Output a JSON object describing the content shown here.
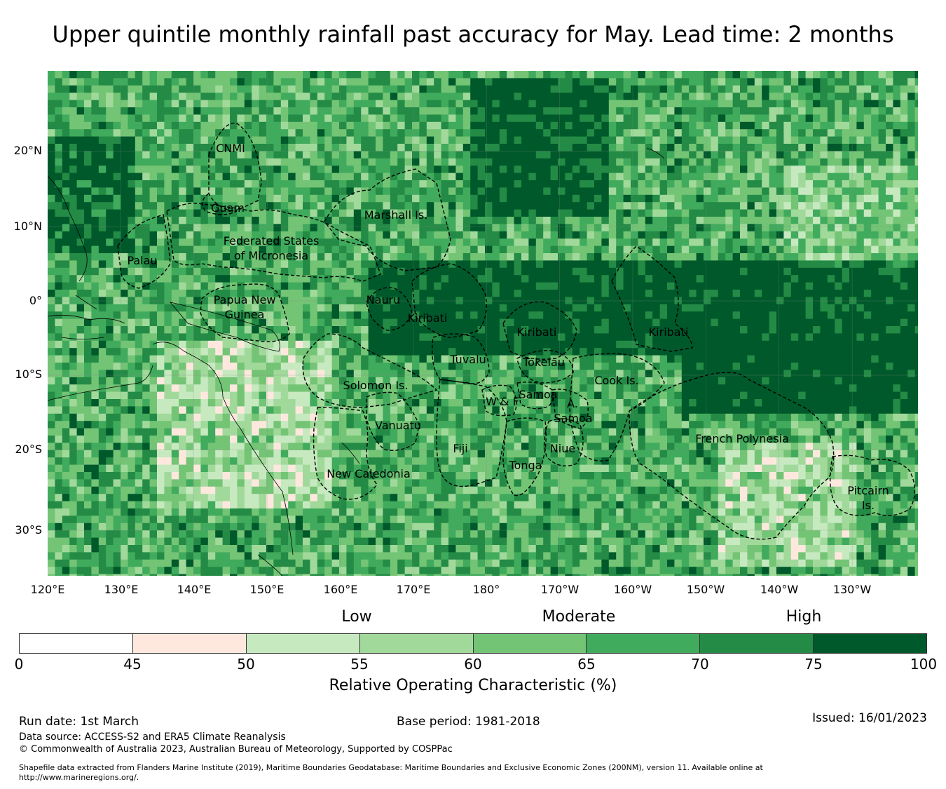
{
  "title": "Upper quintile monthly rainfall past accuracy for May. Lead time: 2 months",
  "map": {
    "lat_labels": [
      "20°N",
      "10°N",
      "0°",
      "10°S",
      "20°S",
      "30°S"
    ],
    "lon_labels": [
      "120°E",
      "130°E",
      "140°E",
      "150°E",
      "160°E",
      "170°E",
      "180°",
      "170°W",
      "160°W",
      "150°W",
      "140°W",
      "130°W"
    ],
    "regions": {
      "cnmi": "CNMI",
      "guam": "Guam",
      "marshall": "Marshall Is.",
      "fsm_line1": "Federated States",
      "fsm_line2": "of Micronesia",
      "palau": "Palau",
      "png_line1": "Papua New",
      "png_line2": "Guinea",
      "nauru": "Nauru",
      "kiribati_west": "Kiribati",
      "kiribati_central": "Kiribati",
      "kiribati_east": "Kiribati",
      "tuvalu": "Tuvalu",
      "tokelau": "Tokelau",
      "cook": "Cook Is.",
      "solomon": "Solomon Is.",
      "wallis": "W & F",
      "samoa": "Samoa",
      "am_samoa_line1": "A.",
      "am_samoa_line2": "Samoa",
      "vanuatu": "Vanuatu",
      "fiji": "Fiji",
      "niue": "Niue",
      "tonga": "Tonga",
      "new_caledonia": "New Caledonia",
      "french_polynesia": "French Polynesia",
      "pitcairn_line1": "Pitcairn",
      "pitcairn_line2": "Is."
    }
  },
  "colorbar": {
    "categories": [
      "Low",
      "Moderate",
      "High"
    ],
    "ticks": [
      "0",
      "45",
      "50",
      "55",
      "60",
      "65",
      "70",
      "75",
      "100"
    ],
    "colors": [
      "#ffffff",
      "#fee8de",
      "#c7e9c0",
      "#a1d99b",
      "#74c476",
      "#41ab5d",
      "#238b45",
      "#00592b"
    ],
    "title": "Relative Operating Characteristic (%)"
  },
  "footer": {
    "run_date": "Run date: 1st March",
    "base_period": "Base period: 1981-2018",
    "issued": "Issued: 16/01/2023",
    "data_source": "Data source: ACCESS-S2 and ERA5 Climate Reanalysis",
    "copyright": "© Commonwealth of Australia 2023, Australian Bureau of Meteorology, Supported by COSPPac",
    "shapefile_line1": "Shapefile data extracted from Flanders Marine Institute (2019), Maritime Boundaries Geodatabase: Maritime Boundaries and Exclusive Economic Zones (200NM), version 11. Available online at",
    "shapefile_line2": "http://www.marineregions.org/."
  }
}
